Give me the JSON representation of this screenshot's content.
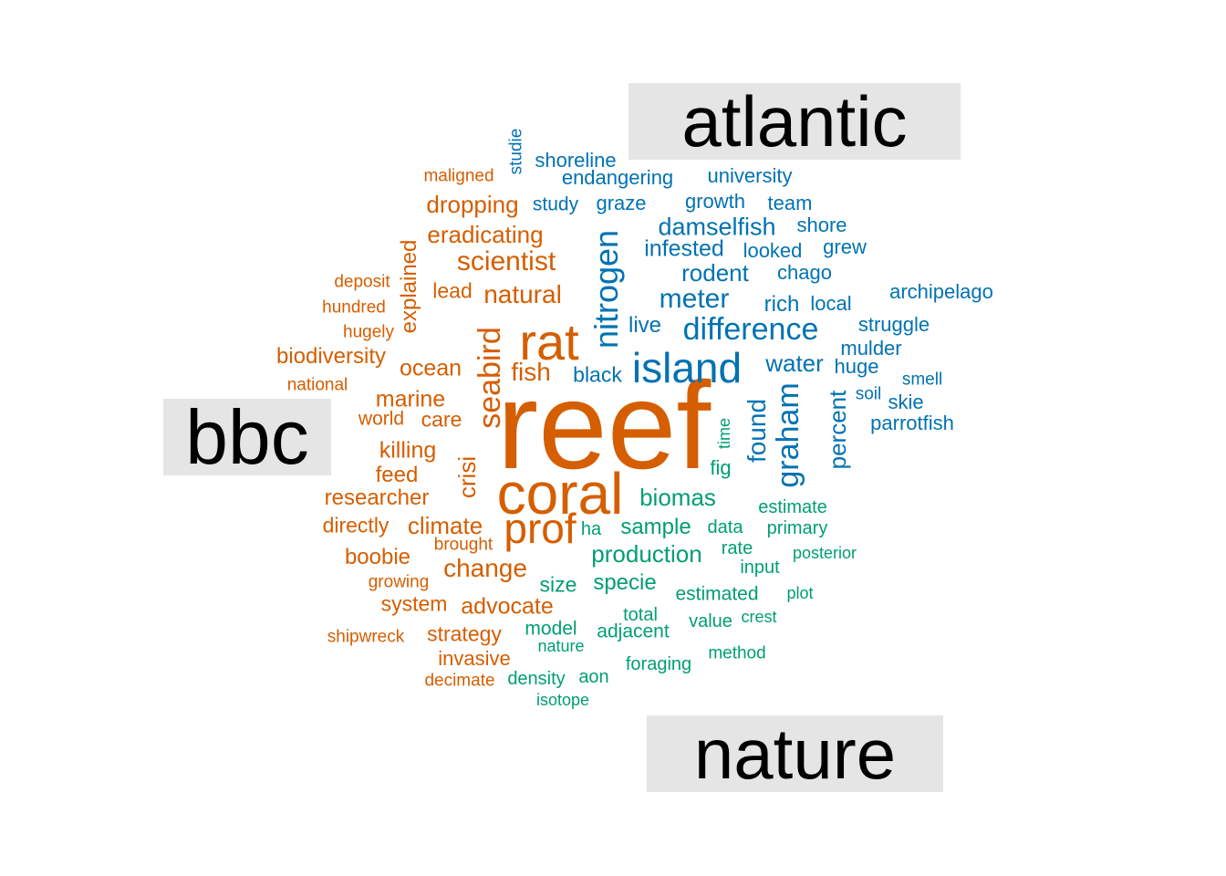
{
  "chart_data": {
    "type": "comparison-wordcloud",
    "groups": [
      {
        "name": "atlantic",
        "color": "#0072B2"
      },
      {
        "name": "bbc",
        "color": "#D55E00"
      },
      {
        "name": "nature",
        "color": "#009E73"
      }
    ],
    "label_bg": "#e5e5e5",
    "words": [
      {
        "text": "reef",
        "group": "bbc",
        "weight": 100
      },
      {
        "text": "coral",
        "group": "bbc",
        "weight": 58
      },
      {
        "text": "rat",
        "group": "bbc",
        "weight": 50
      },
      {
        "text": "prof",
        "group": "bbc",
        "weight": 44
      },
      {
        "text": "seabird",
        "group": "bbc",
        "weight": 42
      },
      {
        "text": "crisi",
        "group": "bbc",
        "weight": 32
      },
      {
        "text": "scientist",
        "group": "bbc",
        "weight": 30
      },
      {
        "text": "natural",
        "group": "bbc",
        "weight": 30
      },
      {
        "text": "change",
        "group": "bbc",
        "weight": 30
      },
      {
        "text": "dropping",
        "group": "bbc",
        "weight": 28
      },
      {
        "text": "climate",
        "group": "bbc",
        "weight": 28
      },
      {
        "text": "eradicating",
        "group": "bbc",
        "weight": 27
      },
      {
        "text": "fish",
        "group": "bbc",
        "weight": 27
      },
      {
        "text": "ocean",
        "group": "bbc",
        "weight": 27
      },
      {
        "text": "marine",
        "group": "bbc",
        "weight": 26
      },
      {
        "text": "advocate",
        "group": "bbc",
        "weight": 26
      },
      {
        "text": "explained",
        "group": "bbc",
        "weight": 24
      },
      {
        "text": "lead",
        "group": "bbc",
        "weight": 24
      },
      {
        "text": "biodiversity",
        "group": "bbc",
        "weight": 25
      },
      {
        "text": "care",
        "group": "bbc",
        "weight": 24
      },
      {
        "text": "killing",
        "group": "bbc",
        "weight": 25
      },
      {
        "text": "feed",
        "group": "bbc",
        "weight": 24
      },
      {
        "text": "researcher",
        "group": "bbc",
        "weight": 25
      },
      {
        "text": "directly",
        "group": "bbc",
        "weight": 24
      },
      {
        "text": "boobie",
        "group": "bbc",
        "weight": 25
      },
      {
        "text": "strategy",
        "group": "bbc",
        "weight": 24
      },
      {
        "text": "system",
        "group": "bbc",
        "weight": 23
      },
      {
        "text": "invasive",
        "group": "bbc",
        "weight": 23
      },
      {
        "text": "world",
        "group": "bbc",
        "weight": 21
      },
      {
        "text": "maligned",
        "group": "bbc",
        "weight": 19
      },
      {
        "text": "deposit",
        "group": "bbc",
        "weight": 19
      },
      {
        "text": "hundred",
        "group": "bbc",
        "weight": 19
      },
      {
        "text": "hugely",
        "group": "bbc",
        "weight": 19
      },
      {
        "text": "national",
        "group": "bbc",
        "weight": 19
      },
      {
        "text": "brought",
        "group": "bbc",
        "weight": 19
      },
      {
        "text": "growing",
        "group": "bbc",
        "weight": 19
      },
      {
        "text": "shipwreck",
        "group": "bbc",
        "weight": 19
      },
      {
        "text": "decimate",
        "group": "bbc",
        "weight": 19
      },
      {
        "text": "island",
        "group": "atlantic",
        "weight": 48
      },
      {
        "text": "nitrogen",
        "group": "atlantic",
        "weight": 40
      },
      {
        "text": "difference",
        "group": "atlantic",
        "weight": 36
      },
      {
        "text": "graham",
        "group": "atlantic",
        "weight": 36
      },
      {
        "text": "meter",
        "group": "atlantic",
        "weight": 31
      },
      {
        "text": "found",
        "group": "atlantic",
        "weight": 30
      },
      {
        "text": "percent",
        "group": "atlantic",
        "weight": 28
      },
      {
        "text": "damselfish",
        "group": "atlantic",
        "weight": 27
      },
      {
        "text": "rodent",
        "group": "atlantic",
        "weight": 27
      },
      {
        "text": "water",
        "group": "atlantic",
        "weight": 27
      },
      {
        "text": "infested",
        "group": "atlantic",
        "weight": 26
      },
      {
        "text": "live",
        "group": "atlantic",
        "weight": 25
      },
      {
        "text": "rich",
        "group": "atlantic",
        "weight": 25
      },
      {
        "text": "black",
        "group": "atlantic",
        "weight": 24
      },
      {
        "text": "shoreline",
        "group": "atlantic",
        "weight": 23
      },
      {
        "text": "endangering",
        "group": "atlantic",
        "weight": 23
      },
      {
        "text": "graze",
        "group": "atlantic",
        "weight": 23
      },
      {
        "text": "growth",
        "group": "atlantic",
        "weight": 23
      },
      {
        "text": "chago",
        "group": "atlantic",
        "weight": 23
      },
      {
        "text": "local",
        "group": "atlantic",
        "weight": 23
      },
      {
        "text": "struggle",
        "group": "atlantic",
        "weight": 23
      },
      {
        "text": "huge",
        "group": "atlantic",
        "weight": 23
      },
      {
        "text": "looked",
        "group": "atlantic",
        "weight": 23
      },
      {
        "text": "university",
        "group": "atlantic",
        "weight": 22
      },
      {
        "text": "study",
        "group": "atlantic",
        "weight": 22
      },
      {
        "text": "team",
        "group": "atlantic",
        "weight": 22
      },
      {
        "text": "shore",
        "group": "atlantic",
        "weight": 22
      },
      {
        "text": "grew",
        "group": "atlantic",
        "weight": 22
      },
      {
        "text": "archipelago",
        "group": "atlantic",
        "weight": 22
      },
      {
        "text": "mulder",
        "group": "atlantic",
        "weight": 22
      },
      {
        "text": "skie",
        "group": "atlantic",
        "weight": 22
      },
      {
        "text": "parrotfish",
        "group": "atlantic",
        "weight": 22
      },
      {
        "text": "studie",
        "group": "atlantic",
        "weight": 20
      },
      {
        "text": "smell",
        "group": "atlantic",
        "weight": 20
      },
      {
        "text": "soil",
        "group": "atlantic",
        "weight": 20
      },
      {
        "text": "biomas",
        "group": "nature",
        "weight": 27
      },
      {
        "text": "production",
        "group": "nature",
        "weight": 27
      },
      {
        "text": "sample",
        "group": "nature",
        "weight": 25
      },
      {
        "text": "specie",
        "group": "nature",
        "weight": 25
      },
      {
        "text": "size",
        "group": "nature",
        "weight": 24
      },
      {
        "text": "fig",
        "group": "nature",
        "weight": 23
      },
      {
        "text": "estimated",
        "group": "nature",
        "weight": 22
      },
      {
        "text": "model",
        "group": "nature",
        "weight": 22
      },
      {
        "text": "adjacent",
        "group": "nature",
        "weight": 22
      },
      {
        "text": "density",
        "group": "nature",
        "weight": 21
      },
      {
        "text": "estimate",
        "group": "nature",
        "weight": 21
      },
      {
        "text": "data",
        "group": "nature",
        "weight": 21
      },
      {
        "text": "primary",
        "group": "nature",
        "weight": 21
      },
      {
        "text": "ha",
        "group": "nature",
        "weight": 21
      },
      {
        "text": "rate",
        "group": "nature",
        "weight": 21
      },
      {
        "text": "input",
        "group": "nature",
        "weight": 21
      },
      {
        "text": "total",
        "group": "nature",
        "weight": 21
      },
      {
        "text": "value",
        "group": "nature",
        "weight": 21
      },
      {
        "text": "foraging",
        "group": "nature",
        "weight": 21
      },
      {
        "text": "method",
        "group": "nature",
        "weight": 20
      },
      {
        "text": "aon",
        "group": "nature",
        "weight": 21
      },
      {
        "text": "posterior",
        "group": "nature",
        "weight": 19
      },
      {
        "text": "plot",
        "group": "nature",
        "weight": 19
      },
      {
        "text": "crest",
        "group": "nature",
        "weight": 19
      },
      {
        "text": "nature",
        "group": "nature",
        "weight": 19
      },
      {
        "text": "isotope",
        "group": "nature",
        "weight": 19
      },
      {
        "text": "time",
        "group": "nature",
        "weight": 19
      }
    ]
  }
}
